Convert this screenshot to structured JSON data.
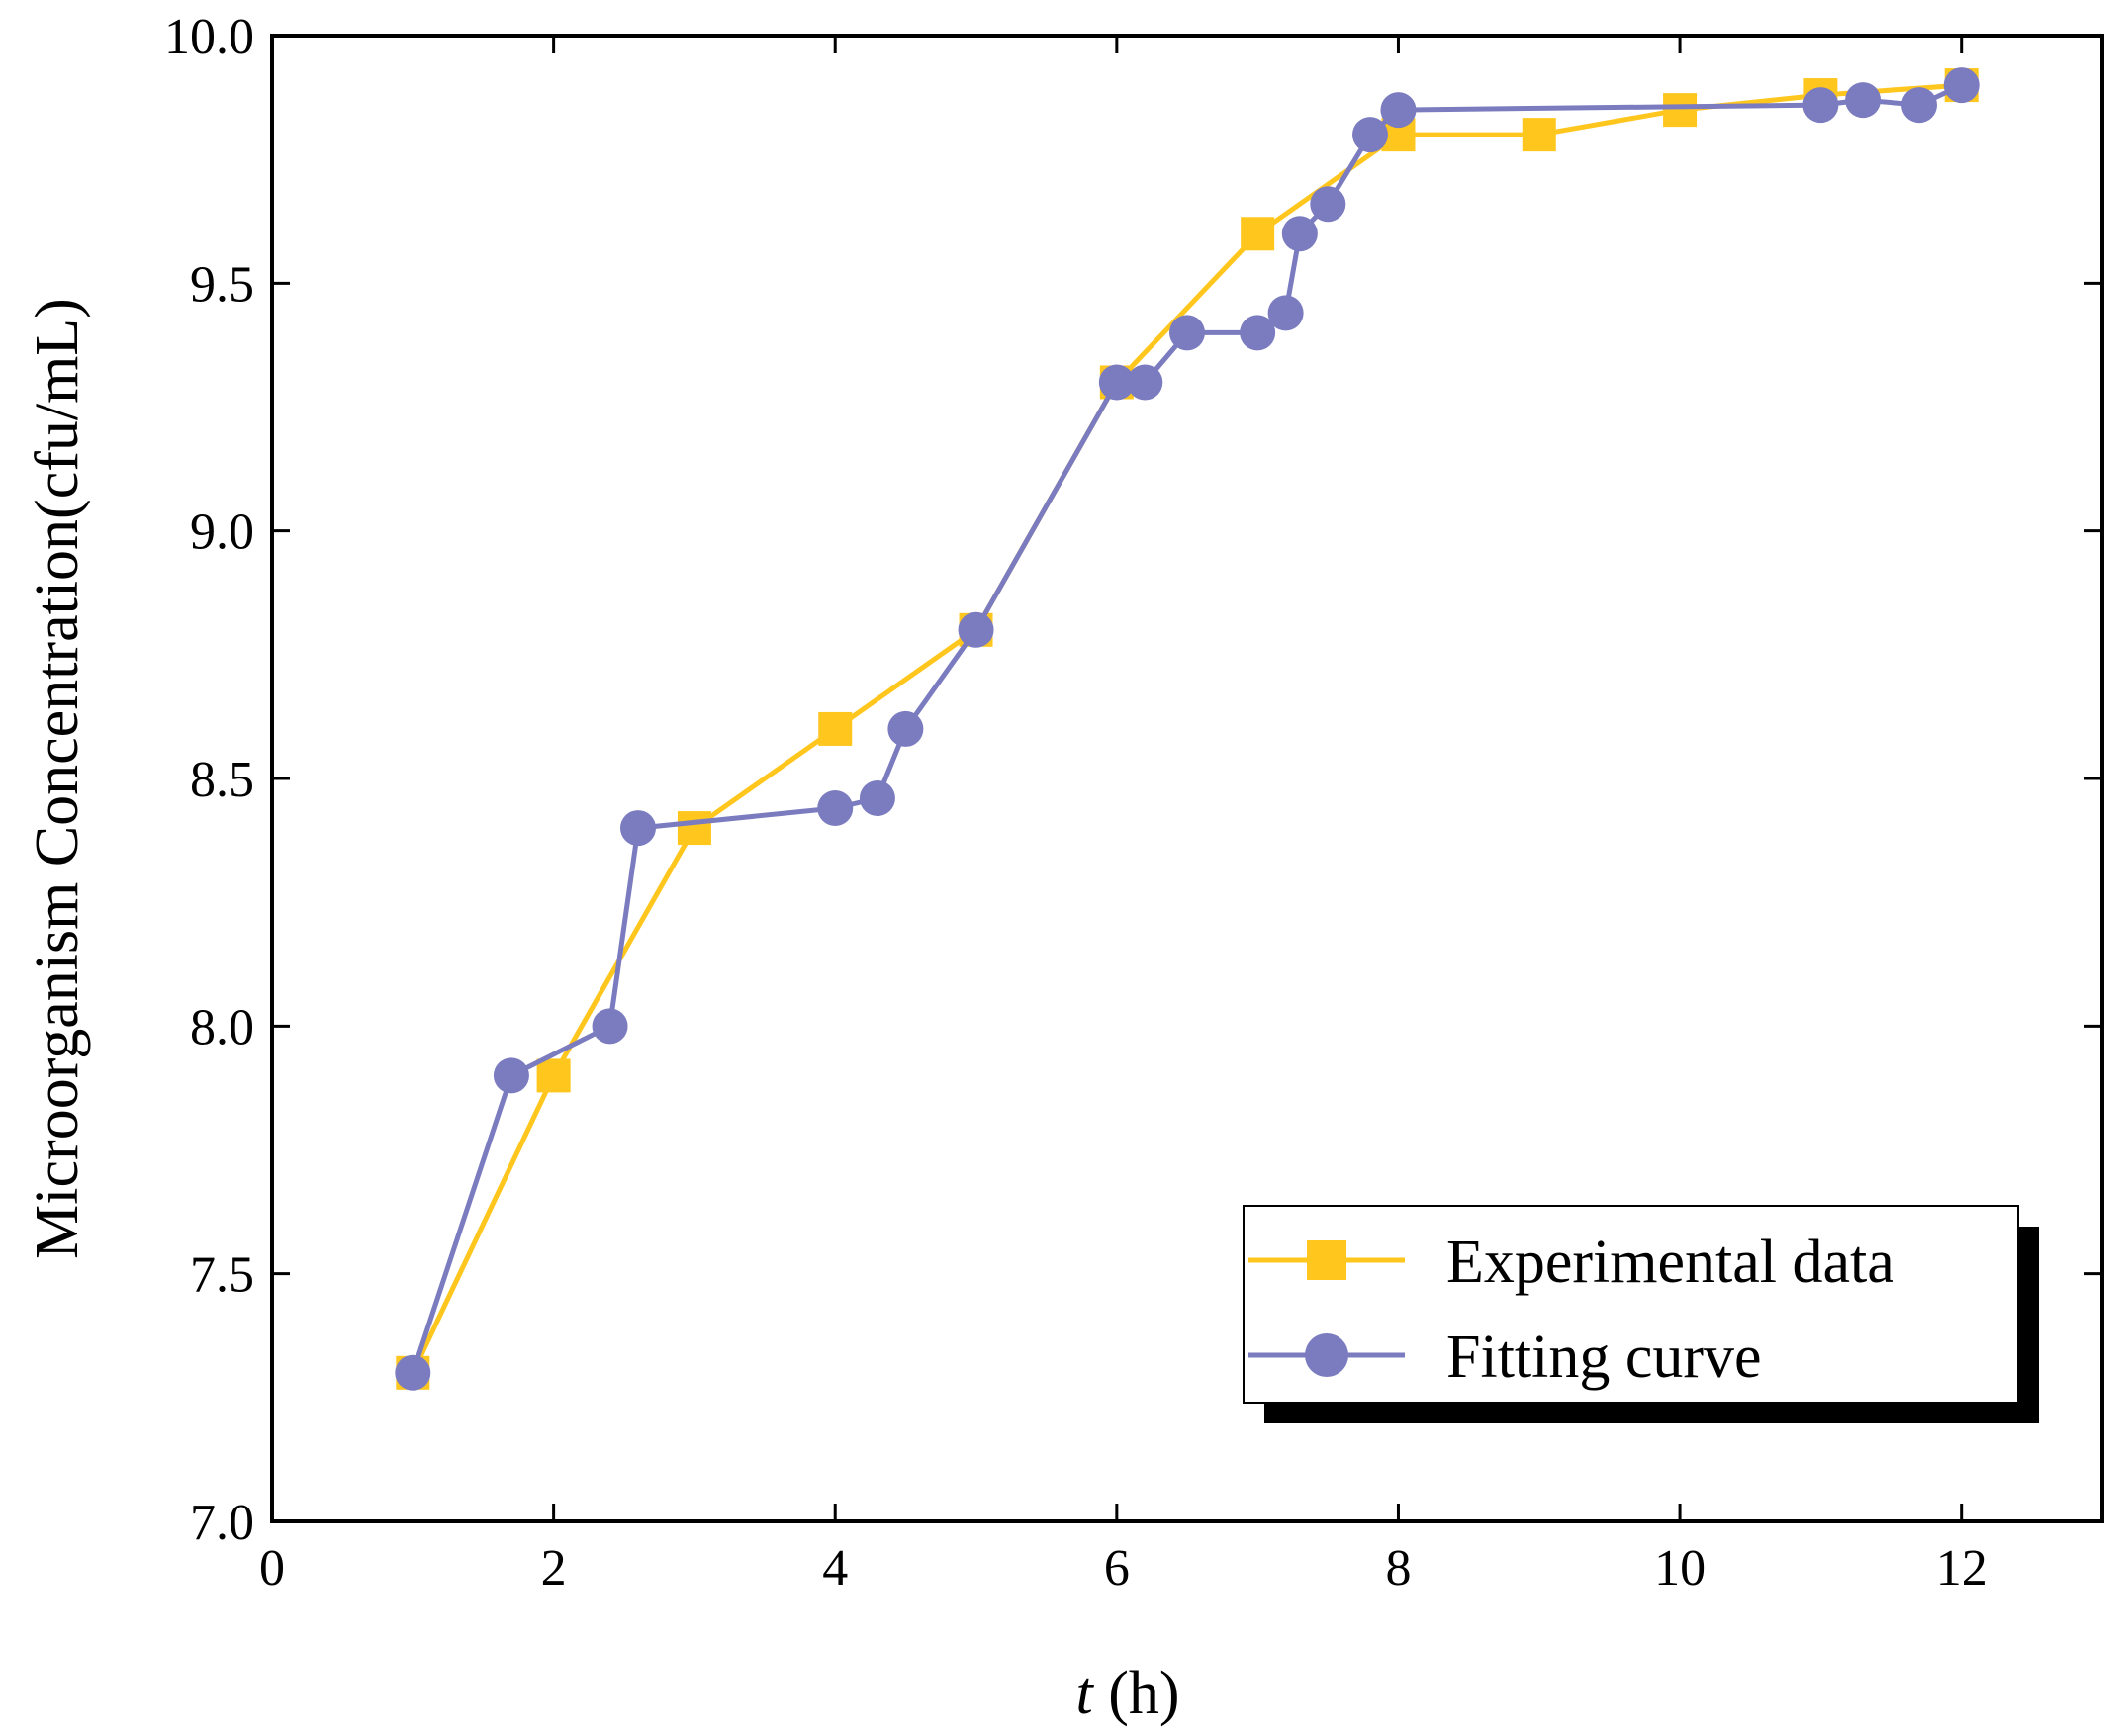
{
  "chart_data": {
    "type": "line",
    "xlabel_italic": "t",
    "xlabel_rest": " (h)",
    "ylabel": "Microorganism Concentration(cfu/mL)",
    "xlim": [
      0,
      13
    ],
    "ylim": [
      7.0,
      10.0
    ],
    "xticks": [
      0,
      2,
      4,
      6,
      8,
      10,
      12
    ],
    "xtick_labels": [
      "0",
      "2",
      "4",
      "6",
      "8",
      "10",
      "12"
    ],
    "yticks": [
      7.0,
      7.5,
      8.0,
      8.5,
      9.0,
      9.5,
      10.0
    ],
    "ytick_labels": [
      "7.0",
      "7.5",
      "8.0",
      "8.5",
      "9.0",
      "9.5",
      "10.0"
    ],
    "legend_position": "bottom-right",
    "series": [
      {
        "name": "Experimental data",
        "marker": "square",
        "color": "#FFC61E",
        "x": [
          1,
          2,
          3,
          4,
          5,
          6,
          7,
          8,
          9,
          10,
          11,
          12
        ],
        "y": [
          7.3,
          7.9,
          8.4,
          8.6,
          8.8,
          9.3,
          9.6,
          9.8,
          9.8,
          9.85,
          9.88,
          9.9
        ]
      },
      {
        "name": "Fitting curve",
        "marker": "circle",
        "color": "#7B7BC0",
        "x": [
          1,
          1.7,
          2.4,
          2.6,
          4,
          4.3,
          4.5,
          5,
          6,
          6.2,
          6.5,
          7,
          7.2,
          7.3,
          7.5,
          7.8,
          8,
          11,
          11.3,
          11.7,
          12
        ],
        "y": [
          7.3,
          7.9,
          8.0,
          8.4,
          8.44,
          8.46,
          8.6,
          8.8,
          9.3,
          9.3,
          9.4,
          9.4,
          9.44,
          9.6,
          9.66,
          9.8,
          9.85,
          9.86,
          9.87,
          9.86,
          9.9
        ]
      }
    ]
  }
}
